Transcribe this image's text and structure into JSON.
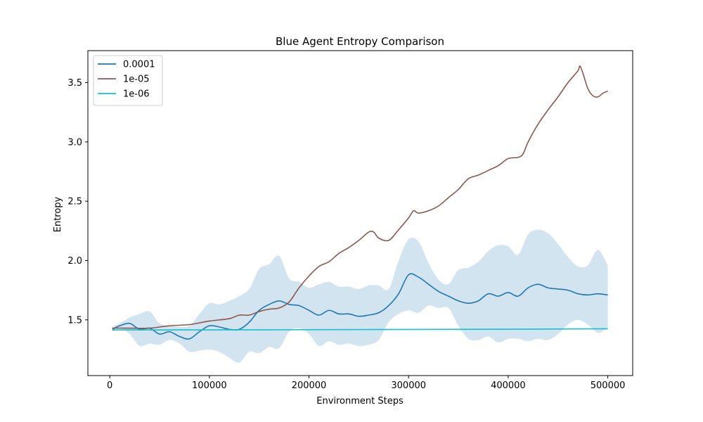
{
  "chart_data": {
    "type": "line",
    "title": "Blue Agent Entropy Comparison",
    "xlabel": "Environment Steps",
    "ylabel": "Entropy",
    "xlim": [
      -22000,
      525000
    ],
    "ylim": [
      1.03,
      3.77
    ],
    "x_ticks": [
      0,
      100000,
      200000,
      300000,
      400000,
      500000
    ],
    "x_tick_labels": [
      "0",
      "100000",
      "200000",
      "300000",
      "400000",
      "500000"
    ],
    "y_ticks": [
      1.5,
      2.0,
      2.5,
      3.0,
      3.5
    ],
    "y_tick_labels": [
      "1.5",
      "2.0",
      "2.5",
      "3.0",
      "3.5"
    ],
    "grid": false,
    "legend_position": "top-left",
    "series": [
      {
        "name": "0.0001",
        "color": "#1f77b4",
        "band_color": "#1f77b4",
        "x": [
          2500,
          10000,
          20000,
          30000,
          40000,
          50000,
          60000,
          70000,
          80000,
          90000,
          100000,
          110000,
          120000,
          130000,
          140000,
          150000,
          160000,
          170000,
          180000,
          190000,
          200000,
          210000,
          220000,
          230000,
          240000,
          250000,
          260000,
          270000,
          280000,
          290000,
          300000,
          310000,
          320000,
          330000,
          340000,
          350000,
          360000,
          370000,
          380000,
          390000,
          400000,
          410000,
          420000,
          430000,
          440000,
          450000,
          460000,
          470000,
          480000,
          490000,
          500000
        ],
        "values": [
          1.42,
          1.45,
          1.47,
          1.42,
          1.43,
          1.38,
          1.4,
          1.36,
          1.34,
          1.4,
          1.45,
          1.44,
          1.42,
          1.42,
          1.48,
          1.58,
          1.63,
          1.66,
          1.63,
          1.62,
          1.58,
          1.54,
          1.58,
          1.55,
          1.55,
          1.53,
          1.54,
          1.56,
          1.62,
          1.72,
          1.88,
          1.86,
          1.8,
          1.74,
          1.7,
          1.66,
          1.64,
          1.66,
          1.72,
          1.7,
          1.73,
          1.7,
          1.77,
          1.8,
          1.77,
          1.76,
          1.75,
          1.72,
          1.71,
          1.72,
          1.71
        ],
        "upper": [
          1.44,
          1.47,
          1.52,
          1.55,
          1.57,
          1.47,
          1.45,
          1.44,
          1.45,
          1.55,
          1.64,
          1.63,
          1.66,
          1.7,
          1.76,
          1.93,
          1.97,
          2.04,
          1.85,
          1.82,
          1.77,
          1.8,
          1.82,
          1.78,
          1.78,
          1.76,
          1.79,
          1.79,
          1.76,
          2.0,
          2.18,
          2.16,
          1.98,
          1.84,
          1.8,
          1.92,
          1.94,
          1.99,
          2.08,
          2.13,
          2.12,
          2.05,
          2.22,
          2.26,
          2.23,
          2.14,
          2.03,
          1.95,
          1.96,
          2.09,
          1.96
        ],
        "lower": [
          1.4,
          1.43,
          1.38,
          1.28,
          1.3,
          1.29,
          1.33,
          1.3,
          1.23,
          1.24,
          1.25,
          1.23,
          1.18,
          1.14,
          1.23,
          1.22,
          1.27,
          1.26,
          1.4,
          1.43,
          1.38,
          1.28,
          1.32,
          1.29,
          1.3,
          1.28,
          1.29,
          1.33,
          1.48,
          1.55,
          1.58,
          1.56,
          1.62,
          1.6,
          1.6,
          1.45,
          1.34,
          1.33,
          1.36,
          1.31,
          1.34,
          1.34,
          1.32,
          1.34,
          1.33,
          1.38,
          1.46,
          1.5,
          1.46,
          1.39,
          1.43
        ]
      },
      {
        "name": "1e-05",
        "color": "#8c564b",
        "x": [
          2500,
          20000,
          40000,
          60000,
          80000,
          100000,
          120000,
          130000,
          140000,
          150000,
          160000,
          170000,
          180000,
          190000,
          200000,
          210000,
          220000,
          230000,
          240000,
          250000,
          260000,
          265000,
          270000,
          280000,
          290000,
          300000,
          305000,
          310000,
          320000,
          330000,
          340000,
          350000,
          360000,
          370000,
          380000,
          390000,
          400000,
          410000,
          415000,
          420000,
          430000,
          440000,
          450000,
          460000,
          470000,
          472000,
          475000,
          480000,
          485000,
          490000,
          495000,
          500000
        ],
        "values": [
          1.43,
          1.43,
          1.43,
          1.45,
          1.46,
          1.49,
          1.51,
          1.54,
          1.54,
          1.57,
          1.59,
          1.6,
          1.65,
          1.77,
          1.87,
          1.95,
          1.99,
          2.06,
          2.11,
          2.17,
          2.24,
          2.24,
          2.19,
          2.17,
          2.26,
          2.36,
          2.42,
          2.4,
          2.42,
          2.46,
          2.53,
          2.6,
          2.69,
          2.72,
          2.76,
          2.8,
          2.86,
          2.87,
          2.9,
          3.0,
          3.15,
          3.27,
          3.38,
          3.5,
          3.6,
          3.64,
          3.58,
          3.45,
          3.39,
          3.38,
          3.41,
          3.43
        ]
      },
      {
        "name": "1e-06",
        "color": "#17becf",
        "x": [
          2500,
          100000,
          200000,
          300000,
          400000,
          500000
        ],
        "values": [
          1.415,
          1.415,
          1.417,
          1.419,
          1.421,
          1.425
        ]
      }
    ]
  }
}
